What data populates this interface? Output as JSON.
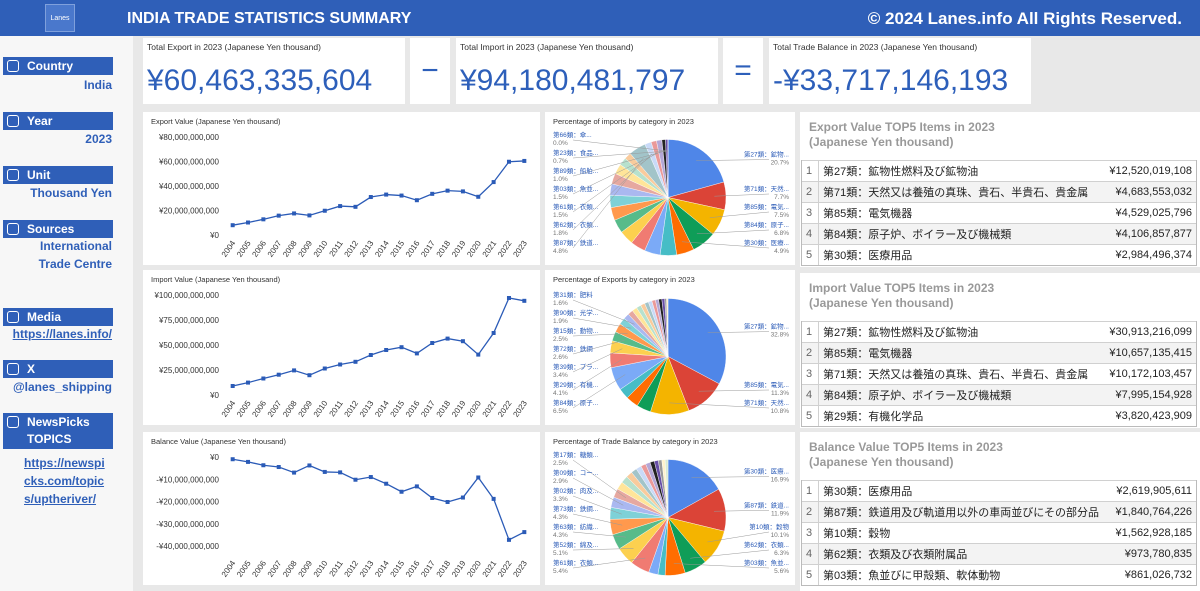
{
  "header": {
    "logo": "Lanes",
    "title": "INDIA TRADE STATISTICS SUMMARY",
    "copyright": "© 2024 Lanes.info All Rights Reserved."
  },
  "sidebar": [
    {
      "label": "Country",
      "value": "India"
    },
    {
      "label": "Year",
      "value": "2023"
    },
    {
      "label": "Unit",
      "value": "Thousand Yen"
    },
    {
      "label": "Sources",
      "value": "International Trade Centre"
    },
    {
      "label": "Media",
      "value": "https://lanes.info/"
    },
    {
      "label": "X",
      "value": "@lanes_shipping"
    },
    {
      "label": "NewsPicks TOPICS",
      "value": "https://newspicks.com/topics/uptheriver/"
    }
  ],
  "kpis": [
    {
      "label": "Total Export in 2023 (Japanese Yen thousand)",
      "value": "¥60,463,335,604"
    },
    {
      "label": "Total Import in 2023 (Japanese Yen thousand)",
      "value": "¥94,180,481,797"
    },
    {
      "label": "Total Trade Balance in 2023 (Japanese Yen thousand)",
      "value": "-¥33,717,146,193"
    }
  ],
  "operators": [
    "−",
    "="
  ],
  "chart_data": [
    {
      "type": "line",
      "title": "Export Value (Japanese Yen thousand)",
      "categories": [
        "2004",
        "2005",
        "2006",
        "2007",
        "2008",
        "2009",
        "2010",
        "2011",
        "2012",
        "2013",
        "2014",
        "2015",
        "2016",
        "2017",
        "2018",
        "2019",
        "2020",
        "2021",
        "2022",
        "2023"
      ],
      "series": [
        {
          "color": "#2b5bb7",
          "values": [
            8000000000,
            10200000000,
            12800000000,
            15800000000,
            17600000000,
            16000000000,
            19800000000,
            23600000000,
            23000000000,
            31000000000,
            33000000000,
            32200000000,
            28400000000,
            33600000000,
            36200000000,
            35600000000,
            31200000000,
            43200000000,
            59800000000,
            60463335604
          ]
        }
      ],
      "ylim": [
        0,
        80000000000
      ],
      "yticks": [
        {
          "value": 0,
          "label": "¥0"
        },
        {
          "value": 20000000000,
          "label": "¥20,000,000,000"
        },
        {
          "value": 40000000000,
          "label": "¥40,000,000,000"
        },
        {
          "value": 60000000000,
          "label": "¥60,000,000,000"
        },
        {
          "value": 80000000000,
          "label": "¥80,000,000,000"
        }
      ]
    },
    {
      "type": "pie",
      "title": "Percentage of imports by category in 2023",
      "categories": [
        "第27類：鉱物...",
        "第71類：天然...",
        "第85類：電気...",
        "第84類：原子...",
        "第30類：医療...",
        null,
        null,
        null,
        null,
        null,
        null,
        null,
        null,
        null,
        null,
        null,
        null,
        "第87類：鉄道...",
        "第62類：衣類...",
        "第61類：衣類...",
        "第03類：魚並...",
        "第89類：船舶...",
        "第23類：食品...",
        "第66類：傘..."
      ],
      "values": [
        20.7,
        7.7,
        7.5,
        6.8,
        4.9,
        4.6,
        4.4,
        4.2,
        4.0,
        3.8,
        3.6,
        3.4,
        3.2,
        3.0,
        2.8,
        2.2,
        1.9,
        4.8,
        1.8,
        1.5,
        1.5,
        1.0,
        0.7,
        0
      ],
      "value_labels": [
        "20.7%",
        "7.7%",
        "7.5%",
        "6.8%",
        "4.9%",
        null,
        null,
        null,
        null,
        null,
        null,
        null,
        null,
        null,
        null,
        null,
        null,
        "4.8%",
        "1.8%",
        "1.5%",
        "1.5%",
        "1.0%",
        "0.7%",
        "0.0%"
      ],
      "colors": [
        "#4f86e8",
        "#db4437",
        "#f4b400",
        "#0f9d58",
        "#ff6d01",
        "#46bdc6",
        "#7baaf7",
        "#f07b72",
        "#fcd04f",
        "#57bb8a",
        "#ff994d",
        "#7ed1d7",
        "#aab8f0",
        "#e6a8a0",
        "#ffe599",
        "#b7e1cd",
        "#f9cb9c",
        "#a2c4c9",
        "#c9daf8",
        "#ea9999",
        "#b4a7d6",
        "#222222",
        "#674ea7",
        "#999999",
        "#fff2cc",
        "#d9ead3"
      ]
    },
    {
      "type": "line",
      "title": "Import Value (Japanese Yen thousand)",
      "categories": [
        "2004",
        "2005",
        "2006",
        "2007",
        "2008",
        "2009",
        "2010",
        "2011",
        "2012",
        "2013",
        "2014",
        "2015",
        "2016",
        "2017",
        "2018",
        "2019",
        "2020",
        "2021",
        "2022",
        "2023"
      ],
      "series": [
        {
          "color": "#2b5bb7",
          "values": [
            9000000000,
            12400000000,
            16500000000,
            20300000000,
            24600000000,
            19800000000,
            26500000000,
            30500000000,
            33200000000,
            40000000000,
            45000000000,
            47800000000,
            41600000000,
            52000000000,
            56400000000,
            53800000000,
            40400000000,
            62000000000,
            97000000000,
            94180481797
          ]
        }
      ],
      "ylim": [
        0,
        100000000000
      ],
      "yticks": [
        {
          "value": 0,
          "label": "¥0"
        },
        {
          "value": 25000000000,
          "label": "¥25,000,000,000"
        },
        {
          "value": 50000000000,
          "label": "¥50,000,000,000"
        },
        {
          "value": 75000000000,
          "label": "¥75,000,000,000"
        },
        {
          "value": 100000000000,
          "label": "¥100,000,000,000"
        }
      ]
    },
    {
      "type": "pie",
      "title": "Percentage of Exports by category in 2023",
      "categories": [
        "第27類：鉱物...",
        "第85類：電気...",
        "第71類：天然...",
        null,
        null,
        null,
        "第84類：原子...",
        "第29類：有機...",
        "第39類：プラ...",
        "第72類：鉄鋼",
        "第15類：動物...",
        "第90類：光学...",
        "第31類：肥料",
        null,
        null,
        null,
        null,
        null,
        null,
        null,
        null,
        null,
        null,
        null,
        null
      ],
      "values": [
        32.8,
        11.3,
        10.8,
        4.0,
        3.5,
        3.0,
        6.5,
        4.1,
        3.4,
        2.6,
        2.5,
        1.9,
        1.6,
        1.5,
        1.4,
        1.3,
        1.2,
        1.1,
        1.0,
        1.0,
        0.9,
        0.9,
        0.8,
        0.5,
        0.4
      ],
      "value_labels": [
        "32.8%",
        "11.3%",
        "10.8%",
        null,
        null,
        null,
        "6.5%",
        "4.1%",
        "3.4%",
        "2.6%",
        "2.5%",
        "1.9%",
        "1.6%",
        null,
        null,
        null,
        null,
        null,
        null,
        null,
        null,
        null,
        null,
        null,
        null
      ],
      "colors": [
        "#4f86e8",
        "#db4437",
        "#f4b400",
        "#0f9d58",
        "#ff6d01",
        "#46bdc6",
        "#7baaf7",
        "#f07b72",
        "#fcd04f",
        "#57bb8a",
        "#ff994d",
        "#7ed1d7",
        "#aab8f0",
        "#e6a8a0",
        "#ffe599",
        "#b7e1cd",
        "#f9cb9c",
        "#a2c4c9",
        "#c9daf8",
        "#ea9999",
        "#b4a7d6",
        "#222222",
        "#674ea7",
        "#999999",
        "#fff2cc",
        "#d9ead3"
      ]
    },
    {
      "type": "line",
      "title": "Balance Value (Japanese Yen thousand)",
      "categories": [
        "2004",
        "2005",
        "2006",
        "2007",
        "2008",
        "2009",
        "2010",
        "2011",
        "2012",
        "2013",
        "2014",
        "2015",
        "2016",
        "2017",
        "2018",
        "2019",
        "2020",
        "2021",
        "2022",
        "2023"
      ],
      "series": [
        {
          "color": "#2b5bb7",
          "values": [
            -1000000000,
            -2200000000,
            -3700000000,
            -4500000000,
            -7000000000,
            -3800000000,
            -6700000000,
            -6900000000,
            -10200000000,
            -9000000000,
            -12000000000,
            -15600000000,
            -13200000000,
            -18400000000,
            -20200000000,
            -18200000000,
            -9200000000,
            -18800000000,
            -37200000000,
            -33717146193
          ]
        }
      ],
      "ylim": [
        -44000000000,
        0
      ],
      "yticks": [
        {
          "value": 0,
          "label": "¥0"
        },
        {
          "value": -10000000000,
          "label": "-¥10,000,000,000"
        },
        {
          "value": -20000000000,
          "label": "-¥20,000,000,000"
        },
        {
          "value": -30000000000,
          "label": "-¥30,000,000,000"
        },
        {
          "value": -40000000000,
          "label": "-¥40,000,000,000"
        }
      ]
    },
    {
      "type": "pie",
      "title": "Percentage of Trade Balance by category in 2023",
      "categories": [
        "第30類：医療...",
        "第87類：鉄道...",
        "第10類：穀物",
        "第62類：衣類...",
        "第03類：魚並...",
        null,
        null,
        "第61類：衣類...",
        "第52類：綿及...",
        "第63類：紡織...",
        "第73類：鉄鋼...",
        "第02類：肉及...",
        "第09類：コー...",
        "第17類：糖類...",
        null,
        null,
        null,
        null,
        null,
        null,
        null,
        null,
        null,
        null,
        null,
        null
      ],
      "values": [
        16.9,
        11.9,
        10.1,
        6.3,
        5.6,
        2.0,
        2.6,
        5.4,
        5.1,
        4.3,
        4.3,
        3.3,
        2.9,
        2.5,
        2.2,
        2.0,
        1.8,
        1.6,
        1.5,
        1.4,
        1.3,
        1.2,
        1.1,
        1.0,
        0.9,
        0.8
      ],
      "value_labels": [
        "16.9%",
        "11.9%",
        "10.1%",
        "6.3%",
        "5.6%",
        null,
        null,
        "5.4%",
        "5.1%",
        "4.3%",
        "4.3%",
        "3.3%",
        "2.9%",
        "2.5%",
        null,
        null,
        null,
        null,
        null,
        null,
        null,
        null,
        null,
        null,
        null,
        null
      ],
      "colors": [
        "#4f86e8",
        "#db4437",
        "#f4b400",
        "#0f9d58",
        "#ff6d01",
        "#46bdc6",
        "#7baaf7",
        "#f07b72",
        "#fcd04f",
        "#57bb8a",
        "#ff994d",
        "#7ed1d7",
        "#aab8f0",
        "#e6a8a0",
        "#ffe599",
        "#b7e1cd",
        "#f9cb9c",
        "#a2c4c9",
        "#c9daf8",
        "#ea9999",
        "#b4a7d6",
        "#222222",
        "#674ea7",
        "#999999",
        "#fff2cc",
        "#d9ead3"
      ]
    }
  ],
  "tables": [
    {
      "title": "Export Value TOP5 Items in 2023",
      "subtitle": "(Japanese Yen thousand)",
      "rows": [
        [
          1,
          "第27類：鉱物性燃料及び鉱物油",
          "¥12,520,019,108"
        ],
        [
          2,
          "第71類：天然又は養殖の真珠、貴石、半貴石、貴金属",
          "¥4,683,553,032"
        ],
        [
          3,
          "第85類：電気機器",
          "¥4,529,025,796"
        ],
        [
          4,
          "第84類：原子炉、ボイラー及び機械類",
          "¥4,106,857,877"
        ],
        [
          5,
          "第30類：医療用品",
          "¥2,984,496,374"
        ]
      ]
    },
    {
      "title": "Import Value TOP5 Items in 2023",
      "subtitle": "(Japanese Yen thousand)",
      "rows": [
        [
          1,
          "第27類：鉱物性燃料及び鉱物油",
          "¥30,913,216,099"
        ],
        [
          2,
          "第85類：電気機器",
          "¥10,657,135,415"
        ],
        [
          3,
          "第71類：天然又は養殖の真珠、貴石、半貴石、貴金属",
          "¥10,172,103,457"
        ],
        [
          4,
          "第84類：原子炉、ボイラー及び機械類",
          "¥7,995,154,928"
        ],
        [
          5,
          "第29類：有機化学品",
          "¥3,820,423,909"
        ]
      ]
    },
    {
      "title": "Balance Value TOP5 Items in 2023",
      "subtitle": "(Japanese Yen thousand)",
      "rows": [
        [
          1,
          "第30類：医療用品",
          "¥2,619,905,611"
        ],
        [
          2,
          "第87類：鉄道用及び軌道用以外の車両並びにその部分品",
          "¥1,840,764,226"
        ],
        [
          3,
          "第10類：穀物",
          "¥1,562,928,185"
        ],
        [
          4,
          "第62類：衣類及び衣類附属品",
          "¥973,780,835"
        ],
        [
          5,
          "第03類：魚並びに甲殻類、軟体動物",
          "¥861,026,732"
        ]
      ]
    }
  ]
}
